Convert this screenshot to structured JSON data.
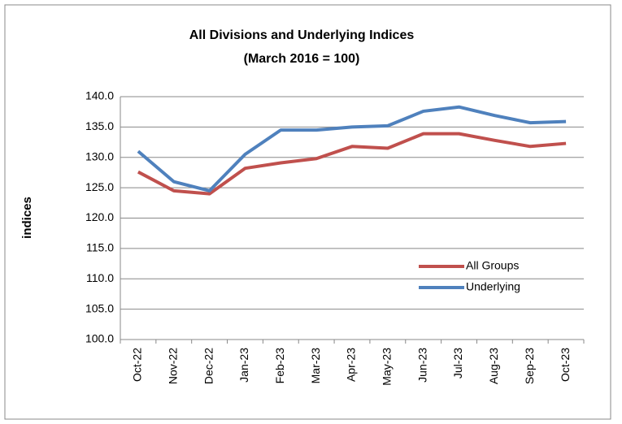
{
  "chart_data": {
    "type": "line",
    "title": "All Divisions and Underlying Indices",
    "subtitle": "(March 2016 = 100)",
    "y_label": "indices",
    "categories": [
      "Oct-22",
      "Nov-22",
      "Dec-22",
      "Jan-23",
      "Feb-23",
      "Mar-23",
      "Apr-23",
      "May-23",
      "Jun-23",
      "Jul-23",
      "Aug-23",
      "Sep-23",
      "Oct-23"
    ],
    "series": [
      {
        "name": "All Groups",
        "color": "#c0504d",
        "values": [
          127.6,
          124.5,
          124.0,
          128.2,
          129.1,
          129.8,
          131.8,
          131.5,
          133.9,
          133.9,
          132.8,
          131.8,
          132.3
        ]
      },
      {
        "name": "Underlying",
        "color": "#4f81bd",
        "values": [
          131.0,
          126.0,
          124.5,
          130.5,
          134.5,
          134.5,
          135.0,
          135.2,
          137.6,
          138.3,
          136.9,
          135.7,
          135.9
        ]
      }
    ],
    "ylim": [
      100,
      140
    ],
    "yticks": [
      {
        "value": 100,
        "label": "100.0"
      },
      {
        "value": 105,
        "label": "105.0"
      },
      {
        "value": 110,
        "label": "110.0"
      },
      {
        "value": 115,
        "label": "115.0"
      },
      {
        "value": 120,
        "label": "120.0"
      },
      {
        "value": 125,
        "label": "125.0"
      },
      {
        "value": 130,
        "label": "130.0"
      },
      {
        "value": 135,
        "label": "135.0"
      },
      {
        "value": 140,
        "label": "140.0"
      }
    ],
    "grid": true,
    "legend": "right"
  }
}
